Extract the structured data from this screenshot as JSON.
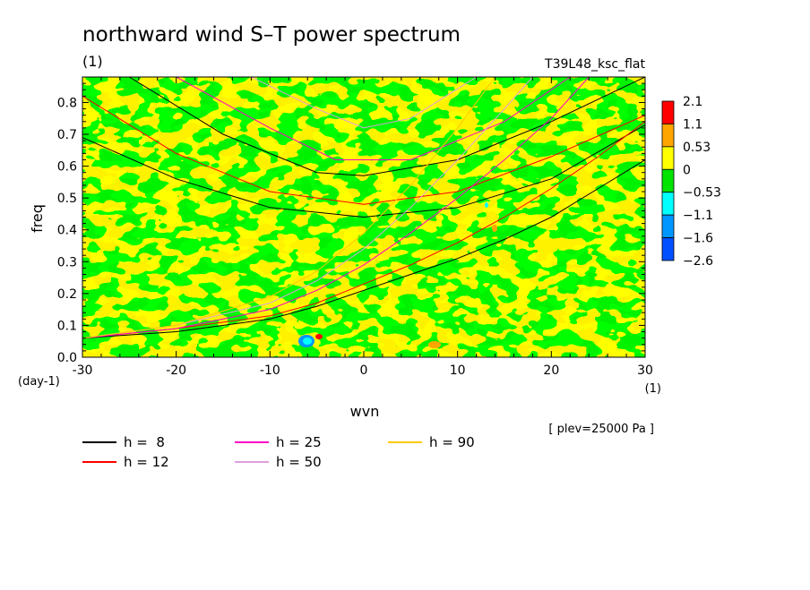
{
  "chart_data": {
    "type": "heatmap",
    "title": "northward wind S–T power spectrum",
    "subtitle_left": "(1)",
    "subtitle_right": "T39L48_ksc_flat",
    "xlabel": "wvn",
    "ylabel": "freq",
    "x_unit": "(1)",
    "y_unit": "(day-1)",
    "xlim": [
      -30,
      30
    ],
    "ylim": [
      0,
      0.88
    ],
    "x_ticks": [
      "-30",
      "-20",
      "-10",
      "0",
      "10",
      "20",
      "30"
    ],
    "x_tick_values": [
      -30,
      -20,
      -10,
      0,
      10,
      20,
      30
    ],
    "y_ticks": [
      "0.0",
      "0.1",
      "0.2",
      "0.3",
      "0.4",
      "0.5",
      "0.6",
      "0.7",
      "0.8"
    ],
    "y_tick_values": [
      0,
      0.1,
      0.2,
      0.3,
      0.4,
      0.5,
      0.6,
      0.7,
      0.8
    ],
    "note": "[ plev=25000 Pa ]",
    "colorbar": {
      "levels": [
        "2.1",
        "1.1",
        "0.53",
        "0",
        "−0.53",
        "−1.1",
        "−1.6",
        "−2.6"
      ],
      "colors": [
        "#ff0000",
        "#ffa500",
        "#ffff00",
        "#00e400",
        "#00ffff",
        "#0096ff",
        "#0050ff"
      ]
    },
    "field": {
      "background": "#ffff00",
      "dominant_color": "#00e400"
    },
    "dispersion_legend": [
      {
        "label": "h =  8",
        "color": "#000000"
      },
      {
        "label": "h = 12",
        "color": "#ff0000"
      },
      {
        "label": "h = 25",
        "color": "#ff00c8"
      },
      {
        "label": "h = 50",
        "color": "#dca0dc"
      },
      {
        "label": "h = 90",
        "color": "#ffc800"
      }
    ],
    "dispersion_curves": [
      {
        "name": "kelvin-h8",
        "color": "#000000",
        "points": [
          [
            -30,
            0.06
          ],
          [
            -20,
            0.08
          ],
          [
            -10,
            0.12
          ],
          [
            -5,
            0.16
          ],
          [
            0,
            0.21
          ],
          [
            5,
            0.26
          ],
          [
            10,
            0.31
          ],
          [
            15,
            0.37
          ],
          [
            20,
            0.44
          ],
          [
            25,
            0.53
          ],
          [
            30,
            0.62
          ]
        ]
      },
      {
        "name": "ig-h8",
        "color": "#000000",
        "points": [
          [
            -30,
            0.69
          ],
          [
            -20,
            0.56
          ],
          [
            -10,
            0.47
          ],
          [
            0,
            0.44
          ],
          [
            10,
            0.47
          ],
          [
            20,
            0.56
          ],
          [
            30,
            0.73
          ]
        ]
      },
      {
        "name": "kelvin-h12",
        "color": "#ff0000",
        "points": [
          [
            -30,
            0.06
          ],
          [
            -20,
            0.09
          ],
          [
            -10,
            0.13
          ],
          [
            -5,
            0.17
          ],
          [
            0,
            0.23
          ],
          [
            5,
            0.29
          ],
          [
            10,
            0.36
          ],
          [
            15,
            0.44
          ],
          [
            20,
            0.53
          ],
          [
            25,
            0.63
          ],
          [
            30,
            0.74
          ]
        ]
      },
      {
        "name": "ig-h12",
        "color": "#ff0000",
        "points": [
          [
            -30,
            0.82
          ],
          [
            -20,
            0.64
          ],
          [
            -10,
            0.52
          ],
          [
            0,
            0.48
          ],
          [
            10,
            0.52
          ],
          [
            20,
            0.63
          ],
          [
            30,
            0.76
          ]
        ]
      },
      {
        "name": "ig-h8-b",
        "color": "#000000",
        "points": [
          [
            -25,
            0.88
          ],
          [
            -15,
            0.7
          ],
          [
            -5,
            0.58
          ],
          [
            0,
            0.57
          ],
          [
            10,
            0.62
          ],
          [
            20,
            0.74
          ],
          [
            30,
            0.88
          ]
        ]
      },
      {
        "name": "kelvin-h25",
        "color": "#ff00c8",
        "points": [
          [
            -30,
            0.06
          ],
          [
            -20,
            0.09
          ],
          [
            -10,
            0.15
          ],
          [
            -5,
            0.21
          ],
          [
            0,
            0.29
          ],
          [
            5,
            0.39
          ],
          [
            10,
            0.5
          ],
          [
            15,
            0.62
          ],
          [
            20,
            0.75
          ],
          [
            24,
            0.88
          ]
        ]
      },
      {
        "name": "ig-h25",
        "color": "#ff00c8",
        "points": [
          [
            -20,
            0.88
          ],
          [
            -10,
            0.72
          ],
          [
            -3,
            0.62
          ],
          [
            5,
            0.62
          ],
          [
            15,
            0.74
          ],
          [
            22,
            0.88
          ]
        ]
      },
      {
        "name": "kelvin-h50",
        "color": "#dca0dc",
        "points": [
          [
            -30,
            0.06
          ],
          [
            -20,
            0.1
          ],
          [
            -10,
            0.17
          ],
          [
            -5,
            0.24
          ],
          [
            0,
            0.34
          ],
          [
            5,
            0.47
          ],
          [
            10,
            0.62
          ],
          [
            15,
            0.78
          ],
          [
            18,
            0.88
          ]
        ]
      },
      {
        "name": "ig-h50",
        "color": "#dca0dc",
        "points": [
          [
            -12,
            0.88
          ],
          [
            -5,
            0.78
          ],
          [
            0,
            0.72
          ],
          [
            5,
            0.75
          ],
          [
            12,
            0.88
          ]
        ]
      },
      {
        "name": "kelvin-h90",
        "color": "#ffc800",
        "points": [
          [
            -30,
            0.06
          ],
          [
            -20,
            0.1
          ],
          [
            -10,
            0.19
          ],
          [
            -5,
            0.27
          ],
          [
            0,
            0.39
          ],
          [
            5,
            0.54
          ],
          [
            10,
            0.72
          ],
          [
            14,
            0.88
          ]
        ]
      }
    ]
  }
}
